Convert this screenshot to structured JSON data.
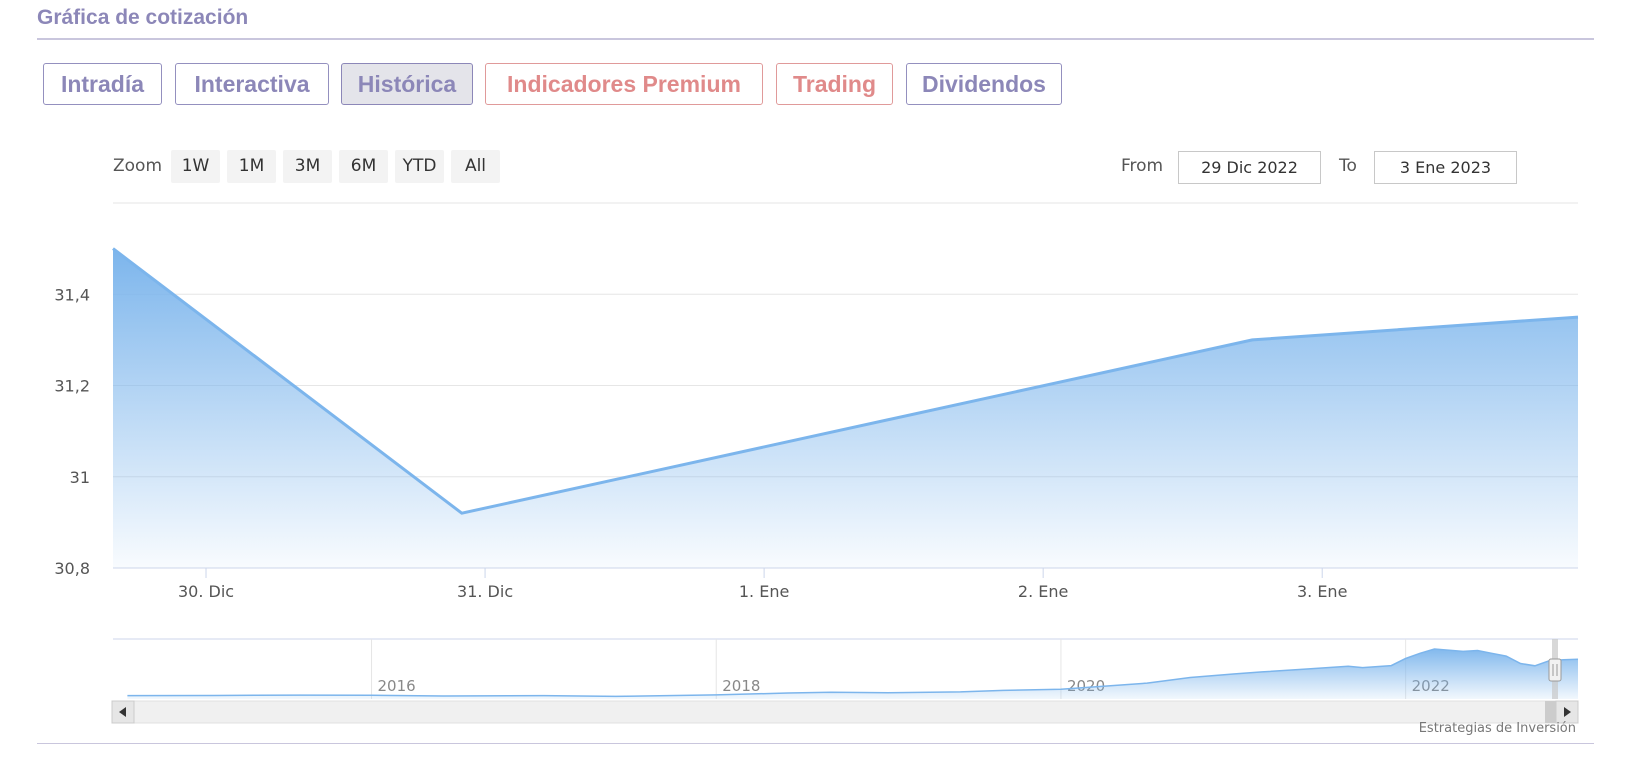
{
  "section": {
    "title": "Gráfica de cotización"
  },
  "tabs": [
    {
      "label": "Intradía",
      "style": "normal"
    },
    {
      "label": "Interactiva",
      "style": "normal"
    },
    {
      "label": "Histórica",
      "style": "active"
    },
    {
      "label": "Indicadores Premium",
      "style": "premium"
    },
    {
      "label": "Trading",
      "style": "premium"
    },
    {
      "label": "Dividendos",
      "style": "normal"
    }
  ],
  "range_selector": {
    "zoom_label": "Zoom",
    "buttons": [
      "1W",
      "1M",
      "3M",
      "6M",
      "YTD",
      "All"
    ],
    "from_label": "From",
    "from_value": "29 Dic 2022",
    "to_label": "To",
    "to_value": "3 Ene 2023"
  },
  "credit": "Estrategias de Inversión",
  "colors": {
    "accent": "#8c87b8",
    "premium": "#e08a8a",
    "series": "#7cb5ec"
  },
  "chart_data": {
    "type": "area",
    "title": "",
    "xlabel": "",
    "ylabel": "",
    "x_range": [
      "2022-12-29T16:00",
      "2023-01-03T22:00"
    ],
    "ylim": [
      30.8,
      31.6
    ],
    "y_ticks": [
      {
        "value": 30.8,
        "label": "30,8"
      },
      {
        "value": 31.0,
        "label": "31"
      },
      {
        "value": 31.2,
        "label": "31,2"
      },
      {
        "value": 31.4,
        "label": "31,4"
      }
    ],
    "x_ticks": [
      {
        "x": "2022-12-30",
        "label": "30. Dic"
      },
      {
        "x": "2022-12-31",
        "label": "31. Dic"
      },
      {
        "x": "2023-01-01",
        "label": "1. Ene"
      },
      {
        "x": "2023-01-02",
        "label": "2. Ene"
      },
      {
        "x": "2023-01-03",
        "label": "3. Ene"
      }
    ],
    "series": [
      {
        "points": [
          {
            "x": "2022-12-29T16:00",
            "y": 31.5
          },
          {
            "x": "2022-12-30T22:00",
            "y": 30.92
          },
          {
            "x": "2023-01-02T18:00",
            "y": 31.3
          },
          {
            "x": "2023-01-03T22:00",
            "y": 31.35
          }
        ]
      }
    ],
    "grid": true,
    "navigator": {
      "x_range": [
        "2014-07",
        "2023-01"
      ],
      "ticks": [
        {
          "x": "2016-01",
          "label": "2016"
        },
        {
          "x": "2018-01",
          "label": "2018"
        },
        {
          "x": "2020-01",
          "label": "2020"
        },
        {
          "x": "2022-01",
          "label": "2022"
        }
      ],
      "ylim": [
        10,
        40
      ],
      "series": [
        {
          "x": "2014-08",
          "y": 11.8
        },
        {
          "x": "2015-02",
          "y": 11.9
        },
        {
          "x": "2015-08",
          "y": 12.1
        },
        {
          "x": "2016-01",
          "y": 12.0
        },
        {
          "x": "2016-06",
          "y": 11.6
        },
        {
          "x": "2017-01",
          "y": 11.8
        },
        {
          "x": "2017-06",
          "y": 11.4
        },
        {
          "x": "2018-01",
          "y": 12.2
        },
        {
          "x": "2018-06",
          "y": 13.2
        },
        {
          "x": "2018-09",
          "y": 13.6
        },
        {
          "x": "2019-01",
          "y": 13.4
        },
        {
          "x": "2019-06",
          "y": 13.8
        },
        {
          "x": "2019-09",
          "y": 14.6
        },
        {
          "x": "2020-01",
          "y": 15.2
        },
        {
          "x": "2020-07",
          "y": 18.5
        },
        {
          "x": "2020-10",
          "y": 21.5
        },
        {
          "x": "2021-01",
          "y": 23.4
        },
        {
          "x": "2021-03",
          "y": 24.5
        },
        {
          "x": "2021-06",
          "y": 26.0
        },
        {
          "x": "2021-09",
          "y": 27.5
        },
        {
          "x": "2021-10",
          "y": 26.8
        },
        {
          "x": "2021-12",
          "y": 27.9
        },
        {
          "x": "2022-01",
          "y": 31.7
        },
        {
          "x": "2022-02",
          "y": 34.5
        },
        {
          "x": "2022-03",
          "y": 36.8
        },
        {
          "x": "2022-05",
          "y": 35.5
        },
        {
          "x": "2022-06",
          "y": 36.0
        },
        {
          "x": "2022-07",
          "y": 34.5
        },
        {
          "x": "2022-08",
          "y": 33.0
        },
        {
          "x": "2022-09",
          "y": 29.0
        },
        {
          "x": "2022-10",
          "y": 27.8
        },
        {
          "x": "2022-11",
          "y": 30.5
        },
        {
          "x": "2022-12",
          "y": 31.0
        },
        {
          "x": "2023-01",
          "y": 31.3
        }
      ]
    }
  }
}
